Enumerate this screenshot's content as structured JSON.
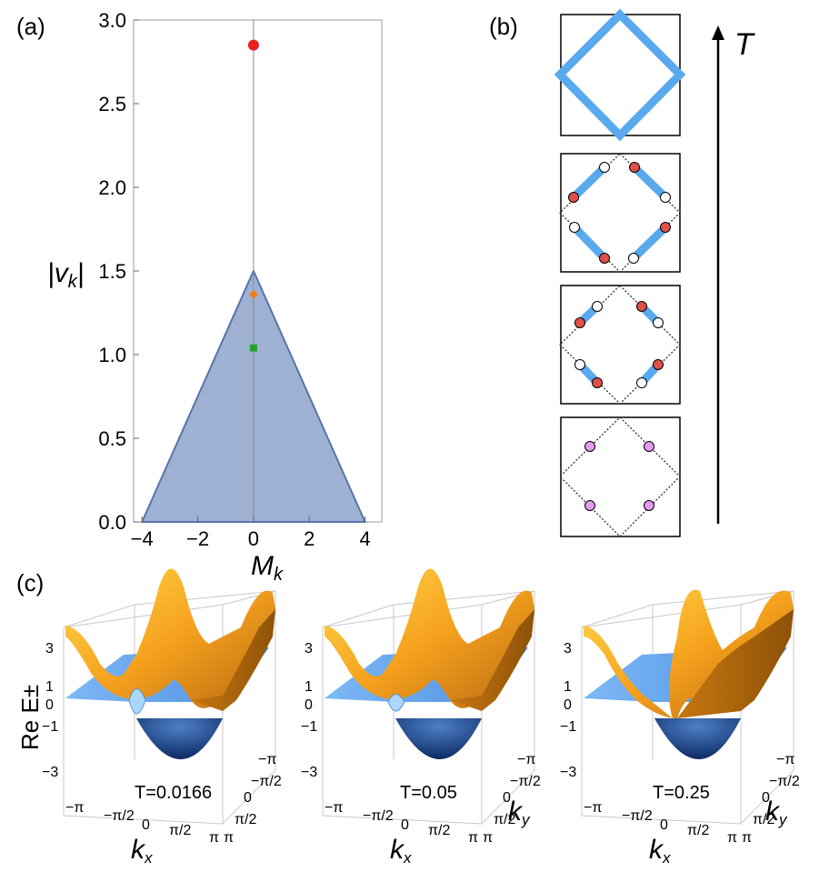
{
  "figure": {
    "panel_a": {
      "label": "(a)",
      "xlabel": "M",
      "xlabel_sub": "k",
      "ylabel": "|v",
      "ylabel_sub": "k",
      "ylabel_close": "|",
      "xticks": [
        "−4",
        "−2",
        "0",
        "2",
        "4"
      ],
      "yticks": [
        "0.0",
        "0.5",
        "1.0",
        "1.5",
        "2.0",
        "2.5",
        "3.0"
      ],
      "region_color": "#9eb1d3",
      "region_edge": "#5873ad"
    },
    "panel_b": {
      "label": "(b)",
      "arrow_label": "T",
      "ring_color": "#59a9ee",
      "red_point_color": "#e0504a",
      "white_point_color": "#ffffff",
      "violet_point_color": "#e59bef"
    },
    "panel_c": {
      "label": "(c)",
      "zlabel": "Re E±",
      "zticks": [
        "3",
        "1",
        "0",
        "−1",
        "−3"
      ],
      "kx_label": "k",
      "kx_sub": "x",
      "ky_label": "k",
      "ky_sub": "y",
      "kx_ticks": [
        "−π",
        "−π/2",
        "0",
        "π/2",
        "π"
      ],
      "ky_ticks": [
        "π",
        "π/2",
        "0",
        "−π/2",
        "−π"
      ],
      "temperatures": [
        "T=0.0166",
        "T=0.05",
        "T=0.25"
      ],
      "upper_color": "#f6a21e",
      "lower_color": "#6aa8f0"
    }
  },
  "chart_data": [
    {
      "type": "area",
      "title": "(a)",
      "xlabel": "M_k",
      "ylabel": "|v_k|",
      "xlim": [
        -4.3,
        4.6
      ],
      "ylim": [
        0,
        3.0
      ],
      "region": {
        "x": [
          -4,
          0,
          4
        ],
        "y": [
          0,
          1.5,
          0
        ]
      },
      "vertical_line": {
        "x": 0,
        "y": [
          0,
          3.0
        ]
      },
      "markers": [
        {
          "shape": "circle",
          "color": "#e8201c",
          "x": 0,
          "y": 2.85
        },
        {
          "shape": "diamond",
          "color": "#f07d1a",
          "x": 0,
          "y": 1.36
        },
        {
          "shape": "square",
          "color": "#22a22c",
          "x": 0,
          "y": 1.04
        }
      ]
    },
    {
      "type": "surface",
      "title": "(c)",
      "zlabel": "Re E±",
      "panels": [
        "T=0.0166",
        "T=0.05",
        "T=0.25"
      ]
    }
  ]
}
